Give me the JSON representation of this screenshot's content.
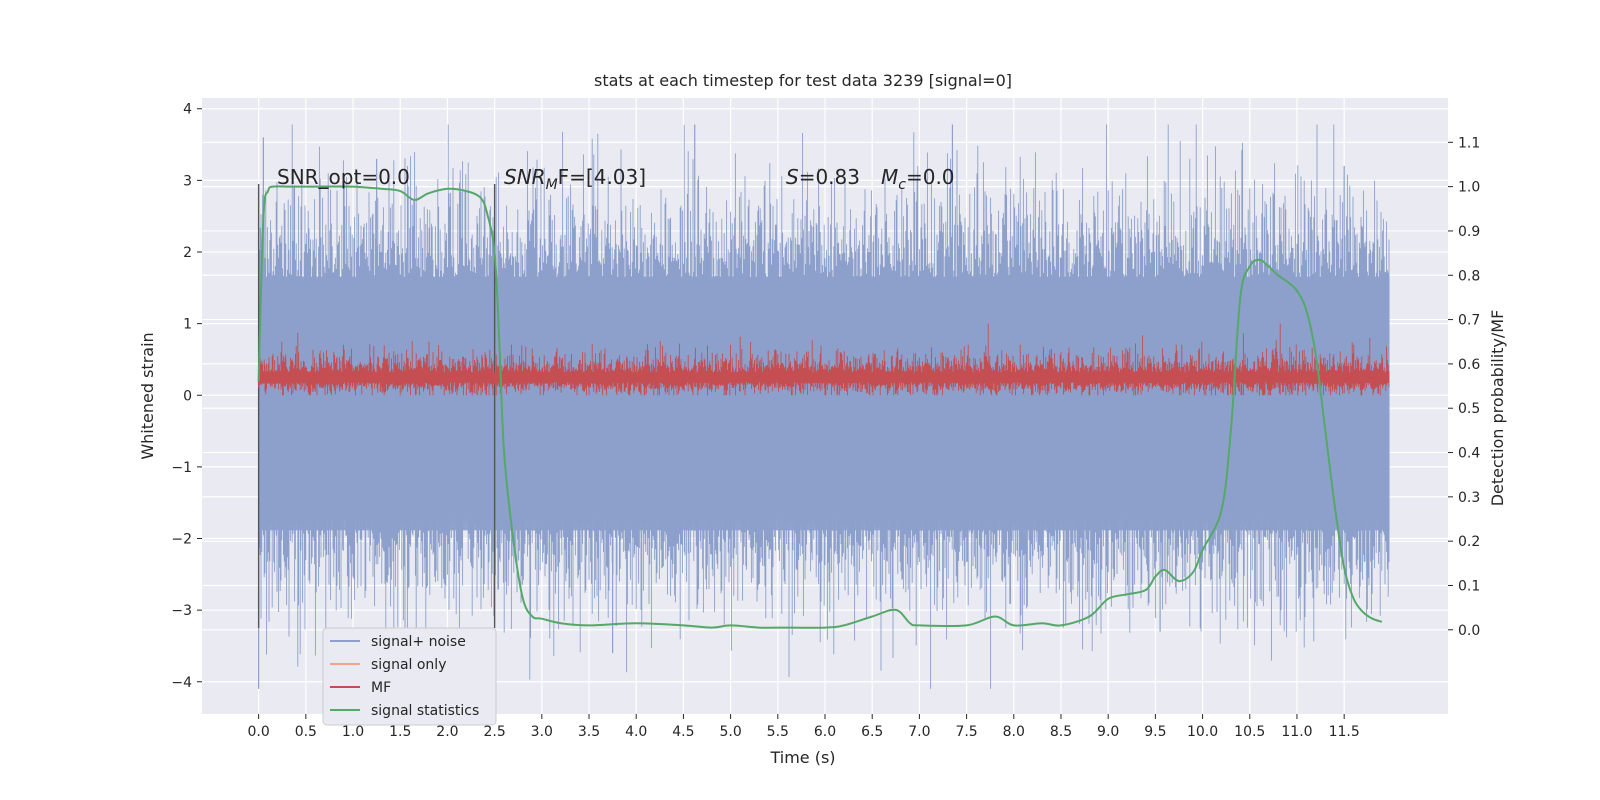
{
  "chart_data": {
    "type": "line",
    "title": "stats at each timestep for test data 3239 [signal=0]",
    "xlabel": "Time (s)",
    "ylabel": "Whitened strain",
    "y2label": "Detection probability/MF",
    "xlim": [
      -0.6,
      12.6
    ],
    "ylim": [
      -4.45,
      4.15
    ],
    "y2lim": [
      -0.19,
      1.2
    ],
    "xticks": [
      0.0,
      0.5,
      1.0,
      1.5,
      2.0,
      2.5,
      3.0,
      3.5,
      4.0,
      4.5,
      5.0,
      5.5,
      6.0,
      6.5,
      7.0,
      7.5,
      8.0,
      8.5,
      9.0,
      9.5,
      10.0,
      10.5,
      11.0,
      11.5
    ],
    "xtick_labels": [
      "0.0",
      "0.5",
      "1.0",
      "1.5",
      "2.0",
      "2.5",
      "3.0",
      "3.5",
      "4.0",
      "4.5",
      "5.0",
      "5.5",
      "6.0",
      "6.5",
      "7.0",
      "7.5",
      "8.0",
      "8.5",
      "9.0",
      "9.5",
      "10.0",
      "10.5",
      "11.0",
      "11.5"
    ],
    "yticks": [
      -4,
      -3,
      -2,
      -1,
      0,
      1,
      2,
      3,
      4
    ],
    "ytick_labels": [
      "−4",
      "−3",
      "−2",
      "−1",
      "0",
      "1",
      "2",
      "3",
      "4"
    ],
    "y2ticks": [
      0.0,
      0.1,
      0.2,
      0.3,
      0.4,
      0.5,
      0.6,
      0.7,
      0.8,
      0.9,
      1.0,
      1.1
    ],
    "y2tick_labels": [
      "0.0",
      "0.1",
      "0.2",
      "0.3",
      "0.4",
      "0.5",
      "0.6",
      "0.7",
      "0.8",
      "0.9",
      "1.0",
      "1.1"
    ],
    "grid": true,
    "legend_position": "lower-left",
    "legend": [
      {
        "label": "signal+ noise",
        "color": "#8da0cb"
      },
      {
        "label": "signal only",
        "color": "#f0a58a"
      },
      {
        "label": "MF",
        "color": "#c44e52"
      },
      {
        "label": "signal statistics",
        "color": "#55a868"
      }
    ],
    "annotations": {
      "snr_opt": "SNR_opt=0.0",
      "snr_mf_base": "SNR",
      "snr_mf_sub": "M",
      "snr_mf_rest": "F=[4.03]",
      "s_sym": "S",
      "s_val": "=0.83",
      "mc_sym": "M",
      "mc_sub": "c",
      "mc_val": "=0.0"
    },
    "vlines": [
      0.0,
      2.5
    ],
    "noise_series": {
      "name": "signal+ noise",
      "color": "#8da0cb",
      "t_start": 0.0,
      "t_end": 11.98,
      "envelope_upper": 2.3,
      "envelope_lower": -2.3,
      "peak_max": 3.78,
      "peak_min": -4.1
    },
    "mf_series": {
      "name": "MF",
      "color": "#c44e52",
      "t_start": 0.0,
      "t_end": 11.98,
      "typical_low": 0.0,
      "typical_high": 0.5,
      "peak_max": 1.0
    },
    "signal_statistics": {
      "name": "signal statistics",
      "color": "#55a868",
      "x": [
        0.0,
        0.05,
        0.1,
        0.15,
        0.3,
        0.6,
        1.0,
        1.3,
        1.5,
        1.65,
        1.8,
        2.0,
        2.2,
        2.35,
        2.42,
        2.5,
        2.55,
        2.6,
        2.7,
        2.8,
        2.9,
        3.0,
        3.2,
        3.5,
        4.0,
        4.5,
        4.8,
        5.0,
        5.3,
        5.5,
        6.0,
        6.2,
        6.5,
        6.75,
        6.9,
        7.0,
        7.5,
        7.8,
        8.0,
        8.3,
        8.5,
        8.8,
        9.0,
        9.2,
        9.4,
        9.5,
        9.6,
        9.75,
        9.9,
        10.0,
        10.2,
        10.3,
        10.4,
        10.5,
        10.6,
        10.7,
        10.8,
        10.9,
        11.0,
        11.1,
        11.2,
        11.3,
        11.4,
        11.5,
        11.6,
        11.7,
        11.8,
        11.9
      ],
      "y": [
        0.56,
        0.93,
        0.99,
        1.0,
        1.0,
        1.0,
        1.0,
        0.995,
        0.99,
        0.97,
        0.985,
        0.995,
        0.99,
        0.975,
        0.94,
        0.85,
        0.65,
        0.4,
        0.2,
        0.07,
        0.03,
        0.025,
        0.015,
        0.01,
        0.015,
        0.01,
        0.005,
        0.01,
        0.005,
        0.005,
        0.005,
        0.01,
        0.03,
        0.045,
        0.015,
        0.01,
        0.01,
        0.03,
        0.01,
        0.015,
        0.01,
        0.03,
        0.07,
        0.08,
        0.09,
        0.12,
        0.135,
        0.11,
        0.13,
        0.18,
        0.27,
        0.45,
        0.75,
        0.82,
        0.835,
        0.82,
        0.8,
        0.785,
        0.765,
        0.72,
        0.62,
        0.45,
        0.28,
        0.14,
        0.07,
        0.04,
        0.025,
        0.018
      ]
    }
  }
}
